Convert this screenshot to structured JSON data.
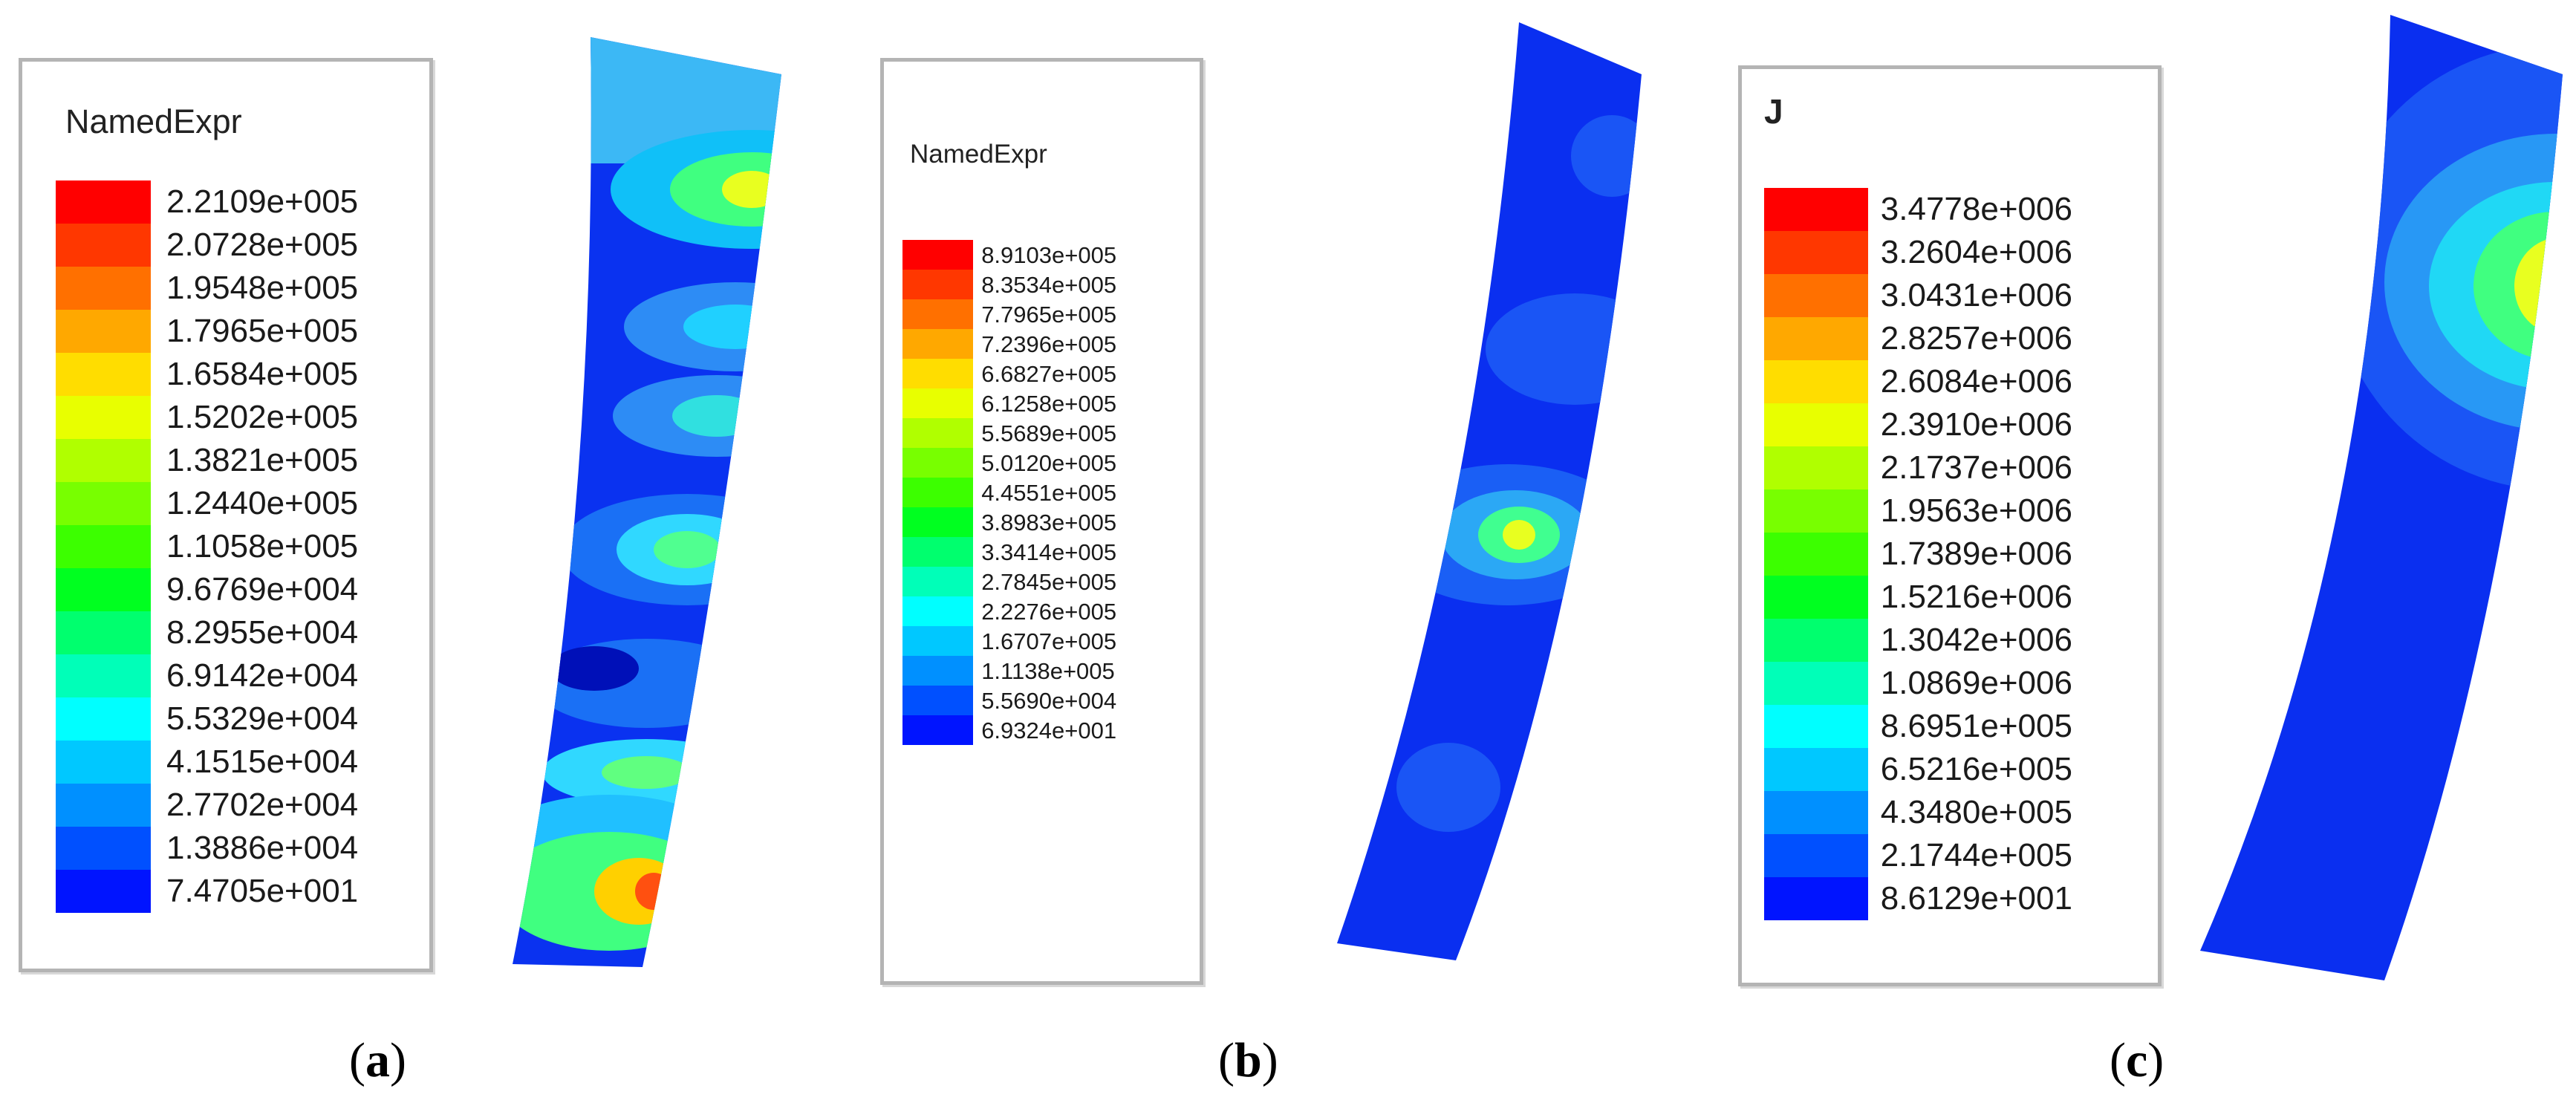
{
  "panels": [
    {
      "id": "a",
      "caption_letter": "a",
      "legend_title": "NamedExpr",
      "values": [
        "2.2109e+005",
        "2.0728e+005",
        "1.9548e+005",
        "1.7965e+005",
        "1.6584e+005",
        "1.5202e+005",
        "1.3821e+005",
        "1.2440e+005",
        "1.1058e+005",
        "9.6769e+004",
        "8.2955e+004",
        "6.9142e+004",
        "5.5329e+004",
        "4.1515e+004",
        "2.7702e+004",
        "1.3886e+004",
        "7.4705e+001"
      ]
    },
    {
      "id": "b",
      "caption_letter": "b",
      "legend_title": "NamedExpr",
      "values": [
        "8.9103e+005",
        "8.3534e+005",
        "7.7965e+005",
        "7.2396e+005",
        "6.6827e+005",
        "6.1258e+005",
        "5.5689e+005",
        "5.0120e+005",
        "4.4551e+005",
        "3.8983e+005",
        "3.3414e+005",
        "2.7845e+005",
        "2.2276e+005",
        "1.6707e+005",
        "1.1138e+005",
        "5.5690e+004",
        "6.9324e+001"
      ]
    },
    {
      "id": "c",
      "caption_letter": "c",
      "legend_title": "J",
      "values": [
        "3.4778e+006",
        "3.2604e+006",
        "3.0431e+006",
        "2.8257e+006",
        "2.6084e+006",
        "2.3910e+006",
        "2.1737e+006",
        "1.9563e+006",
        "1.7389e+006",
        "1.5216e+006",
        "1.3042e+006",
        "1.0869e+006",
        "8.6951e+005",
        "6.5216e+005",
        "4.3480e+005",
        "2.1744e+005",
        "8.6129e+001"
      ]
    }
  ],
  "colormap": [
    "#ff0000",
    "#ff3700",
    "#ff7000",
    "#ffa800",
    "#ffdd00",
    "#e8ff00",
    "#b0ff00",
    "#78ff00",
    "#3cff00",
    "#00ff20",
    "#00ff6e",
    "#00ffb8",
    "#00ffff",
    "#00c8ff",
    "#0090ff",
    "#0050ff",
    "#0014ff"
  ],
  "caption_parens": {
    "open": "(",
    "close": ")"
  }
}
